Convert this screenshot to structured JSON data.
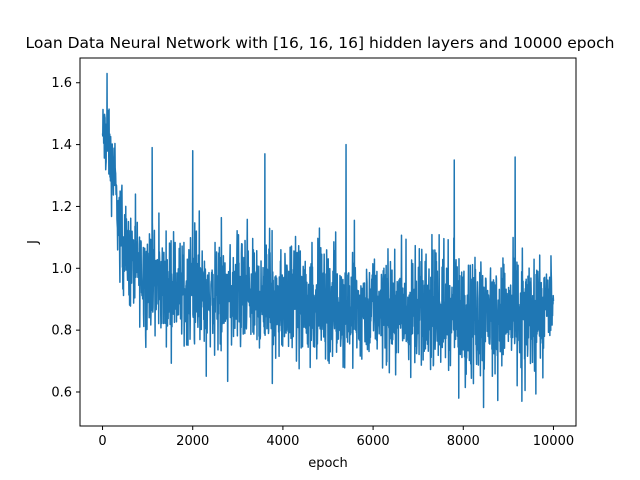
{
  "chart_data": {
    "type": "line",
    "title": "Loan Data Neural Network with [16, 16, 16] hidden layers and 10000 epoch",
    "xlabel": "epoch",
    "ylabel": "J",
    "xlim": [
      -500,
      10500
    ],
    "ylim": [
      0.49,
      1.68
    ],
    "xticks": [
      0,
      2000,
      4000,
      6000,
      8000,
      10000
    ],
    "yticks": [
      0.6,
      0.8,
      1.0,
      1.2,
      1.4,
      1.6
    ],
    "ytick_labels": [
      "0.6",
      "0.8",
      "1.0",
      "1.2",
      "1.4",
      "1.6"
    ],
    "grid": false,
    "series": [
      {
        "color": "#1f77b4",
        "x": [
          0,
          50,
          100,
          150,
          200,
          250,
          300,
          350,
          400,
          450,
          500,
          600,
          700,
          800,
          900,
          1000,
          1250,
          1500,
          2000,
          2500,
          3000,
          3500,
          4000,
          4500,
          5000,
          5500,
          6000,
          6500,
          7000,
          7500,
          8000,
          8500,
          9000,
          9500,
          10000
        ],
        "low": [
          1.25,
          1.27,
          1.2,
          1.22,
          1.12,
          1.18,
          1.05,
          0.98,
          0.92,
          0.88,
          0.82,
          0.8,
          0.78,
          0.77,
          0.75,
          0.74,
          0.72,
          0.71,
          0.68,
          0.67,
          0.66,
          0.66,
          0.65,
          0.65,
          0.64,
          0.64,
          0.63,
          0.63,
          0.62,
          0.62,
          0.61,
          0.6,
          0.6,
          0.6,
          0.7
        ],
        "high": [
          1.6,
          1.58,
          1.63,
          1.55,
          1.5,
          1.48,
          1.4,
          1.35,
          1.33,
          1.3,
          1.28,
          1.25,
          1.23,
          1.22,
          1.21,
          1.2,
          1.18,
          1.17,
          1.16,
          1.15,
          1.15,
          1.14,
          1.14,
          1.13,
          1.13,
          1.12,
          1.12,
          1.11,
          1.11,
          1.11,
          1.1,
          1.1,
          1.1,
          1.1,
          1.05
        ],
        "spikes": [
          [
            100,
            1.63
          ],
          [
            1100,
            1.39
          ],
          [
            2000,
            1.38
          ],
          [
            3600,
            1.37
          ],
          [
            5400,
            1.4
          ],
          [
            7800,
            1.35
          ],
          [
            9150,
            1.36
          ],
          [
            8450,
            0.55
          ],
          [
            7900,
            0.58
          ],
          [
            9300,
            0.57
          ]
        ]
      }
    ]
  }
}
